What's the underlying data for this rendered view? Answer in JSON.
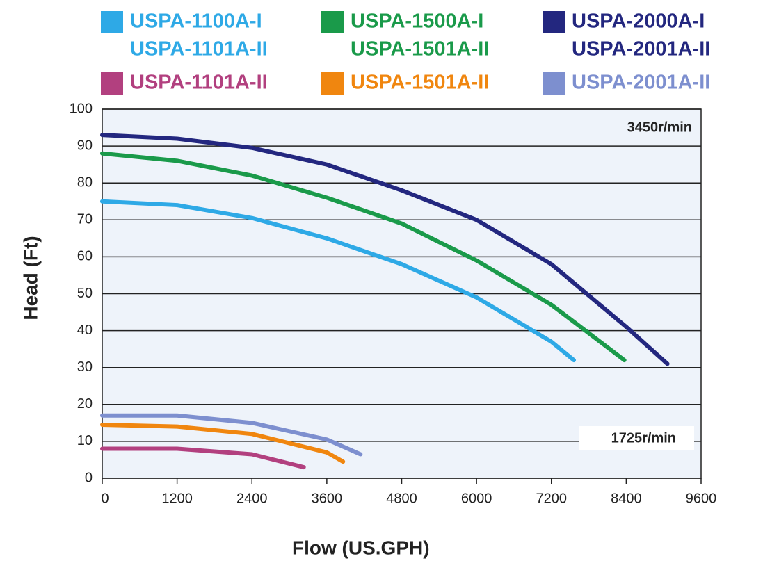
{
  "chart_data": {
    "type": "line",
    "xlabel": "Flow (US.GPH)",
    "ylabel": "Head (Ft)",
    "annotations": [
      "3450r/min",
      "1725r/min"
    ],
    "xlim": [
      0,
      9600
    ],
    "xticks": [
      0,
      1200,
      2400,
      3600,
      4800,
      6000,
      7200,
      8400,
      9600
    ],
    "ylim": [
      0,
      100
    ],
    "yticks": [
      0,
      10,
      20,
      30,
      40,
      50,
      60,
      70,
      80,
      90,
      100
    ],
    "grid": true,
    "series": [
      {
        "name": [
          "USPA-1100A-I",
          "USPA-1101A-II"
        ],
        "color": "#2ea9e6",
        "x": [
          0,
          1200,
          2400,
          3600,
          4800,
          6000,
          7200,
          7560
        ],
        "values": [
          75,
          74,
          70.5,
          65,
          58,
          49,
          37,
          32
        ]
      },
      {
        "name": [
          "USPA-1500A-I",
          "USPA-1501A-II"
        ],
        "color": "#1a9a4a",
        "x": [
          0,
          1200,
          2400,
          3600,
          4800,
          6000,
          7200,
          8370
        ],
        "values": [
          88,
          86,
          82,
          76,
          69,
          59,
          47,
          32
        ]
      },
      {
        "name": [
          "USPA-2000A-I",
          "USPA-2001A-II"
        ],
        "color": "#23277f",
        "x": [
          0,
          1200,
          2400,
          3600,
          4800,
          6000,
          7200,
          8400,
          9060
        ],
        "values": [
          93,
          92,
          89.5,
          85,
          78,
          70,
          58,
          41,
          31
        ]
      },
      {
        "name": "USPA-1101A-II",
        "color": "#b2407f",
        "x": [
          0,
          1200,
          2400,
          3230
        ],
        "values": [
          8,
          8,
          6.5,
          3
        ]
      },
      {
        "name": "USPA-1501A-II",
        "color": "#f0860f",
        "x": [
          0,
          1200,
          2400,
          3600,
          3860
        ],
        "values": [
          14.5,
          14,
          12,
          7,
          4.5
        ]
      },
      {
        "name": "USPA-2001A-II",
        "color": "#7d8fcf",
        "x": [
          0,
          1200,
          2400,
          3600,
          4140
        ],
        "values": [
          17,
          17,
          15,
          10.5,
          6.5
        ]
      }
    ]
  }
}
